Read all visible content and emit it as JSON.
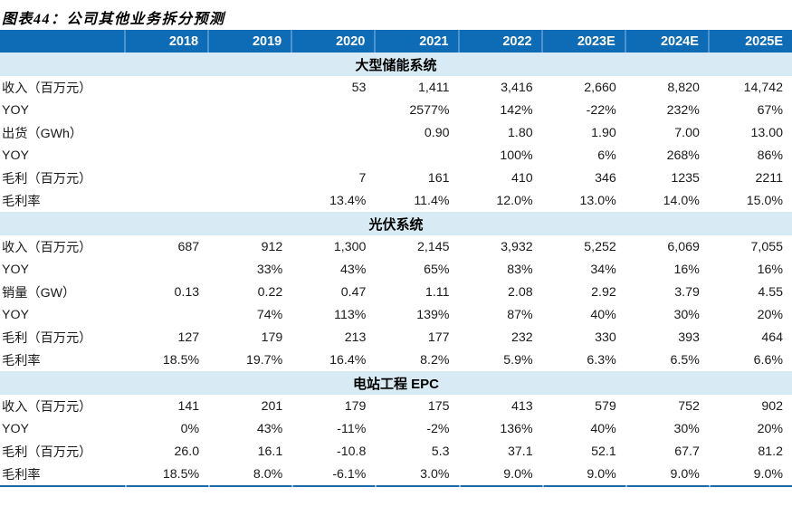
{
  "title": "图表44：公司其他业务拆分预测",
  "colors": {
    "header_bg": "#0e6bb5",
    "header_separator": "#4e93ce",
    "section_bg": "#d8eaf3",
    "bottom_line": "#1e6aa8"
  },
  "table": {
    "label_col_width": 138,
    "columns": [
      "2018",
      "2019",
      "2020",
      "2021",
      "2022",
      "2023E",
      "2024E",
      "2025E"
    ],
    "sections": [
      {
        "name": "大型储能系统",
        "rows": [
          {
            "label": "收入（百万元）",
            "values": [
              "",
              "",
              "53",
              "1,411",
              "3,416",
              "2,660",
              "8,820",
              "14,742"
            ]
          },
          {
            "label": "YOY",
            "values": [
              "",
              "",
              "",
              "2577%",
              "142%",
              "-22%",
              "232%",
              "67%"
            ]
          },
          {
            "label": "出货（GWh）",
            "values": [
              "",
              "",
              "",
              "0.90",
              "1.80",
              "1.90",
              "7.00",
              "13.00"
            ]
          },
          {
            "label": "YOY",
            "values": [
              "",
              "",
              "",
              "",
              "100%",
              "6%",
              "268%",
              "86%"
            ]
          },
          {
            "label": "毛利（百万元）",
            "values": [
              "",
              "",
              "7",
              "161",
              "410",
              "346",
              "1235",
              "2211"
            ]
          },
          {
            "label": "毛利率",
            "values": [
              "",
              "",
              "13.4%",
              "11.4%",
              "12.0%",
              "13.0%",
              "14.0%",
              "15.0%"
            ]
          }
        ]
      },
      {
        "name": "光伏系统",
        "rows": [
          {
            "label": "收入（百万元）",
            "values": [
              "687",
              "912",
              "1,300",
              "2,145",
              "3,932",
              "5,252",
              "6,069",
              "7,055"
            ]
          },
          {
            "label": "YOY",
            "values": [
              "",
              "33%",
              "43%",
              "65%",
              "83%",
              "34%",
              "16%",
              "16%"
            ]
          },
          {
            "label": "销量（GW）",
            "values": [
              "0.13",
              "0.22",
              "0.47",
              "1.11",
              "2.08",
              "2.92",
              "3.79",
              "4.55"
            ]
          },
          {
            "label": "YOY",
            "values": [
              "",
              "74%",
              "113%",
              "139%",
              "87%",
              "40%",
              "30%",
              "20%"
            ]
          },
          {
            "label": "毛利（百万元）",
            "values": [
              "127",
              "179",
              "213",
              "177",
              "232",
              "330",
              "393",
              "464"
            ]
          },
          {
            "label": "毛利率",
            "values": [
              "18.5%",
              "19.7%",
              "16.4%",
              "8.2%",
              "5.9%",
              "6.3%",
              "6.5%",
              "6.6%"
            ]
          }
        ]
      },
      {
        "name": "电站工程 EPC",
        "rows": [
          {
            "label": "收入（百万元）",
            "values": [
              "141",
              "201",
              "179",
              "175",
              "413",
              "579",
              "752",
              "902"
            ]
          },
          {
            "label": "YOY",
            "values": [
              "0%",
              "43%",
              "-11%",
              "-2%",
              "136%",
              "40%",
              "30%",
              "20%"
            ]
          },
          {
            "label": "毛利（百万元）",
            "values": [
              "26.0",
              "16.1",
              "-10.8",
              "5.3",
              "37.1",
              "52.1",
              "67.7",
              "81.2"
            ]
          },
          {
            "label": "毛利率",
            "values": [
              "18.5%",
              "8.0%",
              "-6.1%",
              "3.0%",
              "9.0%",
              "9.0%",
              "9.0%",
              "9.0%"
            ]
          }
        ]
      }
    ]
  }
}
